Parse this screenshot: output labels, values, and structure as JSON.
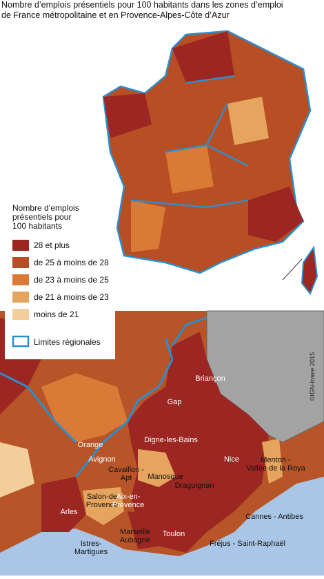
{
  "title": [
    "Nombre d’emplois présentiels pour 100 habitants dans les zones d’emploi",
    "de France métropolitaine et en Provence-Alpes-Côte d’Azur"
  ],
  "legend": {
    "title": [
      "Nombre d’emplois",
      "présentiels pour",
      "100 habitants"
    ],
    "items": [
      {
        "label": "28 et plus",
        "color": "#9c2622"
      },
      {
        "label": "de 25 à moins de 28",
        "color": "#b84e23"
      },
      {
        "label": "de 23 à moins de 25",
        "color": "#d97a37"
      },
      {
        "label": "de 21 à moins de 23",
        "color": "#e6a55e"
      },
      {
        "label": "moins de 21",
        "color": "#f2cf9a"
      }
    ],
    "boundary": {
      "label": "Limites régionales",
      "color": "#2a8fd0"
    }
  },
  "places": [
    [
      "Briançon"
    ],
    [
      "Gap"
    ],
    [
      "Digne-les-Bains"
    ],
    [
      "Nice"
    ],
    [
      "Menton -",
      "Vallée de la Roya"
    ],
    [
      "Orange"
    ],
    [
      "Avignon"
    ],
    [
      "Cavaillon -",
      "Apt"
    ],
    [
      "Manosque"
    ],
    [
      "Salon-de",
      "Provence"
    ],
    [
      "Aix-en-",
      "Provence"
    ],
    [
      "Draguignan"
    ],
    [
      "Arles"
    ],
    [
      "Cannes - Antibes"
    ],
    [
      "Istres-",
      "Martigues"
    ],
    [
      "Marseille",
      "Aubagne"
    ],
    [
      "Toulon"
    ],
    [
      "Fréjus - Saint-Raphaël"
    ]
  ],
  "credit": "©IGN-Insee 2015"
}
